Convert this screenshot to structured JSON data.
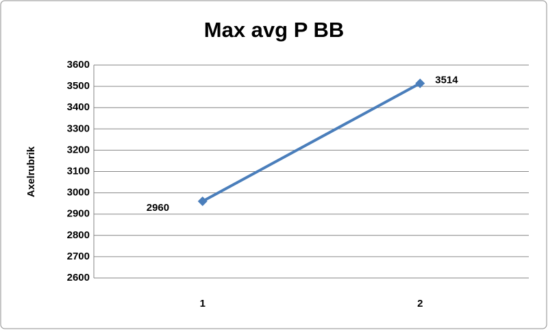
{
  "chart_data": {
    "type": "line",
    "title": "Max avg P BB",
    "y_label": "Axelrubrik",
    "categories": [
      "1",
      "2"
    ],
    "values": [
      2960,
      3514
    ],
    "color": "#4a7ebb",
    "ylim": [
      2600,
      3600
    ],
    "yticks": [
      2600,
      2700,
      2800,
      2900,
      3000,
      3100,
      3200,
      3300,
      3400,
      3500,
      3600
    ],
    "grid": true
  }
}
